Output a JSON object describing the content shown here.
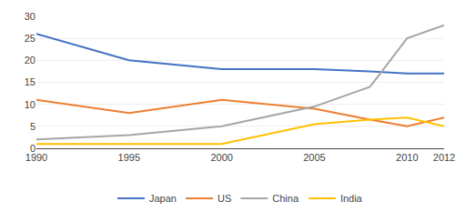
{
  "chart_data": {
    "type": "line",
    "x": [
      1990,
      1995,
      2000,
      2005,
      2008,
      2010,
      2012
    ],
    "series": [
      {
        "name": "Japan",
        "color": "#4472C4",
        "values": [
          26,
          20,
          18,
          18,
          17.5,
          17,
          17
        ]
      },
      {
        "name": "US",
        "color": "#ED7D31",
        "values": [
          11,
          8,
          11,
          9,
          6.5,
          5,
          7
        ]
      },
      {
        "name": "China",
        "color": "#A5A5A5",
        "values": [
          2,
          3,
          5,
          9.5,
          14,
          25,
          28
        ]
      },
      {
        "name": "India",
        "color": "#FFC000",
        "values": [
          1,
          1,
          1,
          5.5,
          6.5,
          7,
          5
        ]
      }
    ],
    "xlim": [
      1990,
      2012
    ],
    "xticks": [
      1990,
      1995,
      2000,
      2005,
      2010,
      2012
    ],
    "ylim": [
      0,
      30
    ],
    "yticks": [
      0,
      5,
      10,
      15,
      20,
      25,
      30
    ],
    "grid": true,
    "legend": "bottom"
  }
}
